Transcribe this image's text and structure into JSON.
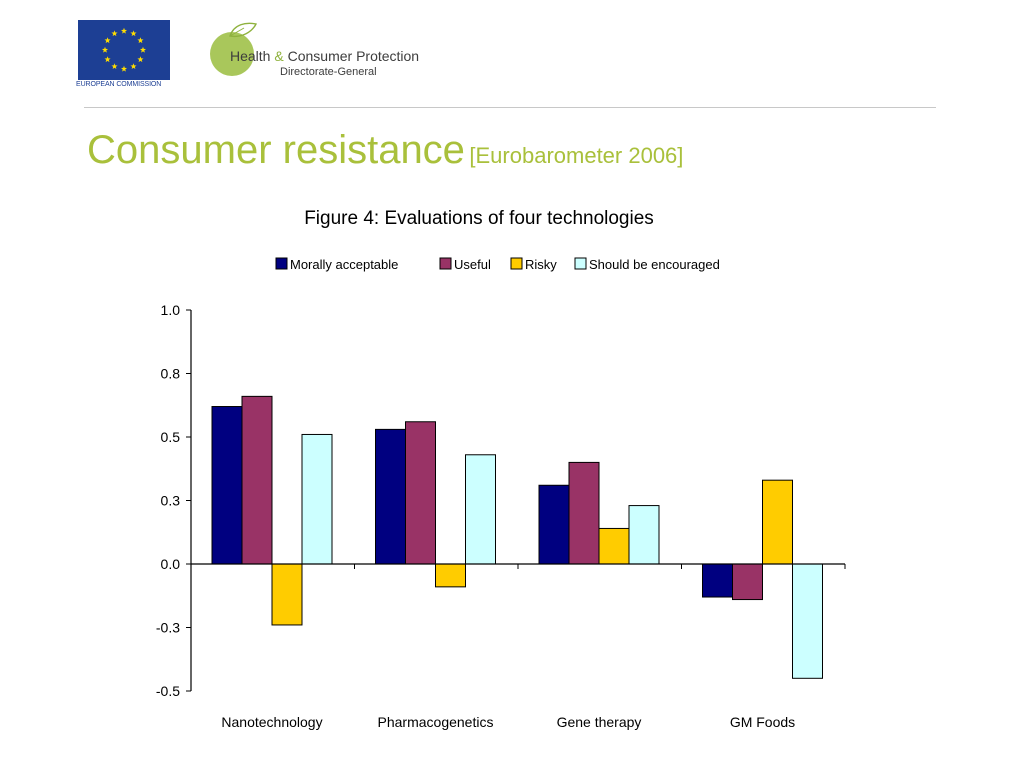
{
  "header": {
    "eu_label": "EUROPEAN COMMISSION",
    "dg_name_health": "Health",
    "dg_name_amp": "&",
    "dg_name_rest": "Consumer Protection",
    "dg_subtitle": "Directorate-General"
  },
  "slide": {
    "title": "Consumer resistance",
    "subtitle": "[Eurobarometer 2006]"
  },
  "colors": {
    "title_green": "#a9c03b",
    "eu_blue": "#1d3f94",
    "eu_star": "#ffdd00",
    "morally_acceptable": "#000080",
    "useful": "#993366",
    "risky": "#ffcc00",
    "should_be_encouraged": "#ccffff"
  },
  "chart_data": {
    "type": "bar",
    "title": "Figure 4: Evaluations of four technologies",
    "categories": [
      "Nanotechnology",
      "Pharmacogenetics",
      "Gene therapy",
      "GM Foods"
    ],
    "series": [
      {
        "name": "Morally acceptable",
        "values": [
          0.62,
          0.53,
          0.31,
          -0.13
        ]
      },
      {
        "name": "Useful",
        "values": [
          0.66,
          0.56,
          0.4,
          -0.14
        ]
      },
      {
        "name": "Risky",
        "values": [
          -0.24,
          -0.09,
          0.14,
          0.33
        ]
      },
      {
        "name": "Should be encouraged",
        "values": [
          0.51,
          0.43,
          0.23,
          -0.45
        ]
      }
    ],
    "y_ticks": [
      "1.0",
      "0.8",
      "0.5",
      "0.3",
      "0.0",
      "-0.3",
      "-0.5"
    ],
    "y_tick_values": [
      1.0,
      0.75,
      0.5,
      0.25,
      0.0,
      -0.25,
      -0.5
    ],
    "ylim": [
      -0.5,
      1.0
    ],
    "xlabel": "",
    "ylabel": "",
    "grid": false,
    "legend_position": "top"
  }
}
